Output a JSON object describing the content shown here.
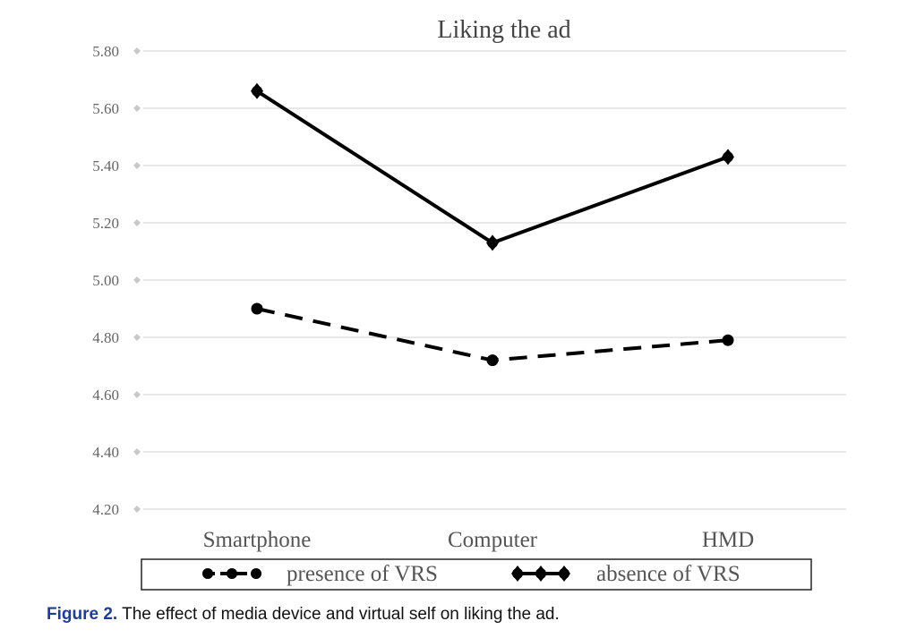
{
  "chart_data": {
    "type": "line",
    "title": "Liking the ad",
    "categories": [
      "Smartphone",
      "Computer",
      "HMD"
    ],
    "y_ticks": [
      "5.80",
      "5.60",
      "5.40",
      "5.20",
      "5.00",
      "4.80",
      "4.60",
      "4.40",
      "4.20"
    ],
    "ylim": [
      4.2,
      5.8
    ],
    "grid": true,
    "legend_position": "bottom",
    "series": [
      {
        "name": "presence of VRS",
        "values": [
          4.9,
          4.72,
          4.79
        ],
        "line_style": "dashed",
        "marker": "circle",
        "color": "#000000"
      },
      {
        "name": "absence of VRS",
        "values": [
          5.66,
          5.13,
          5.43
        ],
        "line_style": "solid",
        "marker": "diamond-circle",
        "color": "#000000"
      }
    ]
  },
  "caption": {
    "label": "Figure 2.",
    "text": "The effect of media device and virtual self on liking the ad."
  }
}
